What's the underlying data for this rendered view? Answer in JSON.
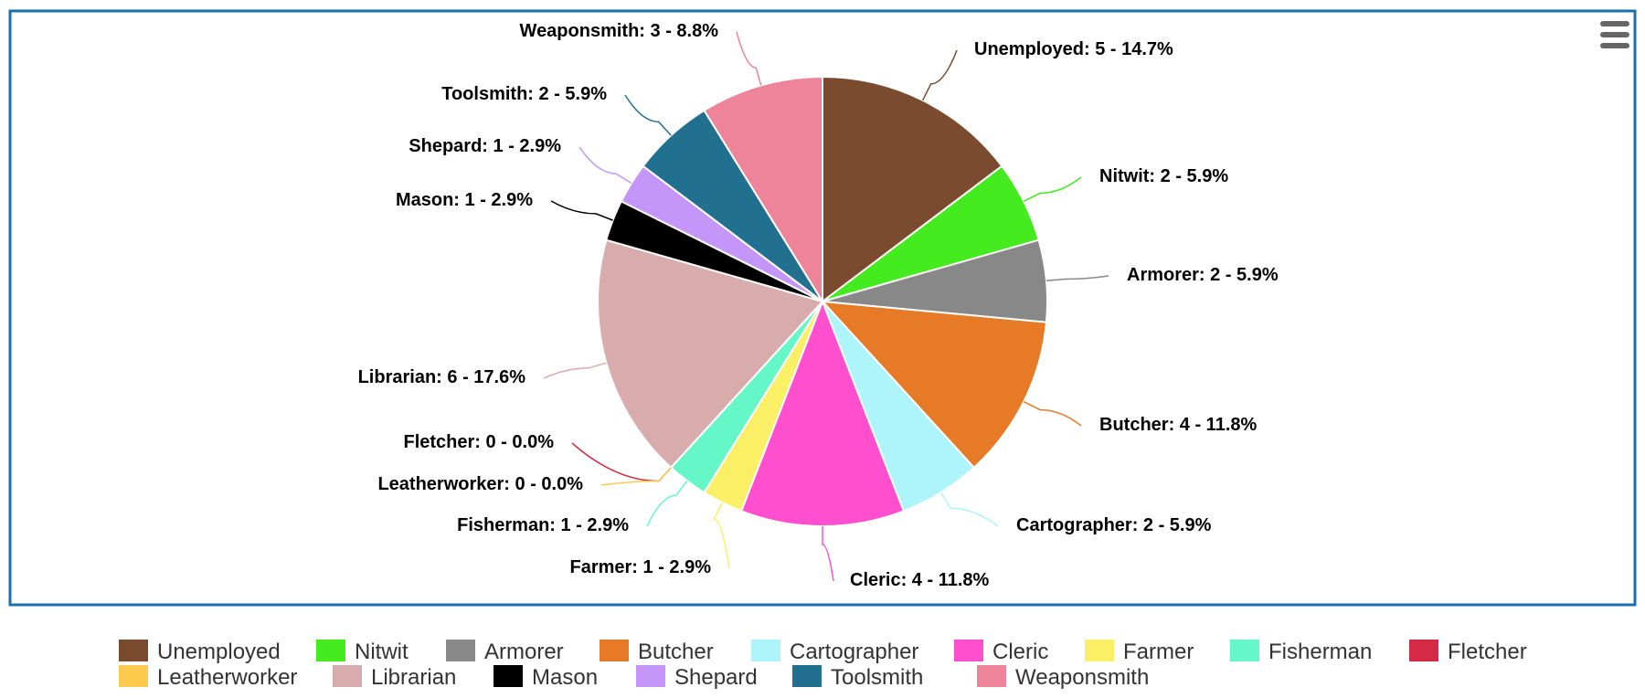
{
  "chart_data": {
    "type": "pie",
    "title": "",
    "slices": [
      {
        "label": "Unemployed",
        "value": 5,
        "percent": "14.7%",
        "color": "#7b4b2f"
      },
      {
        "label": "Nitwit",
        "value": 2,
        "percent": "5.9%",
        "color": "#44eb1f"
      },
      {
        "label": "Armorer",
        "value": 2,
        "percent": "5.9%",
        "color": "#888888"
      },
      {
        "label": "Butcher",
        "value": 4,
        "percent": "11.8%",
        "color": "#e67a27"
      },
      {
        "label": "Cartographer",
        "value": 2,
        "percent": "5.9%",
        "color": "#aef5fb"
      },
      {
        "label": "Cleric",
        "value": 4,
        "percent": "11.8%",
        "color": "#ff4fcf"
      },
      {
        "label": "Farmer",
        "value": 1,
        "percent": "2.9%",
        "color": "#fbf065"
      },
      {
        "label": "Fisherman",
        "value": 1,
        "percent": "2.9%",
        "color": "#66f7c8"
      },
      {
        "label": "Fletcher",
        "value": 0,
        "percent": "0.0%",
        "color": "#d42a45"
      },
      {
        "label": "Leatherworker",
        "value": 0,
        "percent": "0.0%",
        "color": "#fecb4e"
      },
      {
        "label": "Librarian",
        "value": 6,
        "percent": "17.6%",
        "color": "#d8abac"
      },
      {
        "label": "Mason",
        "value": 1,
        "percent": "2.9%",
        "color": "#000000"
      },
      {
        "label": "Shepard",
        "value": 1,
        "percent": "2.9%",
        "color": "#c596f9"
      },
      {
        "label": "Toolsmith",
        "value": 2,
        "percent": "5.9%",
        "color": "#22708f"
      },
      {
        "label": "Weaponsmith",
        "value": 3,
        "percent": "8.8%",
        "color": "#ee8499"
      }
    ],
    "legend_placement": "bottom",
    "border_color": "#1a6fb0"
  },
  "menu_icon": "hamburger-menu-icon"
}
